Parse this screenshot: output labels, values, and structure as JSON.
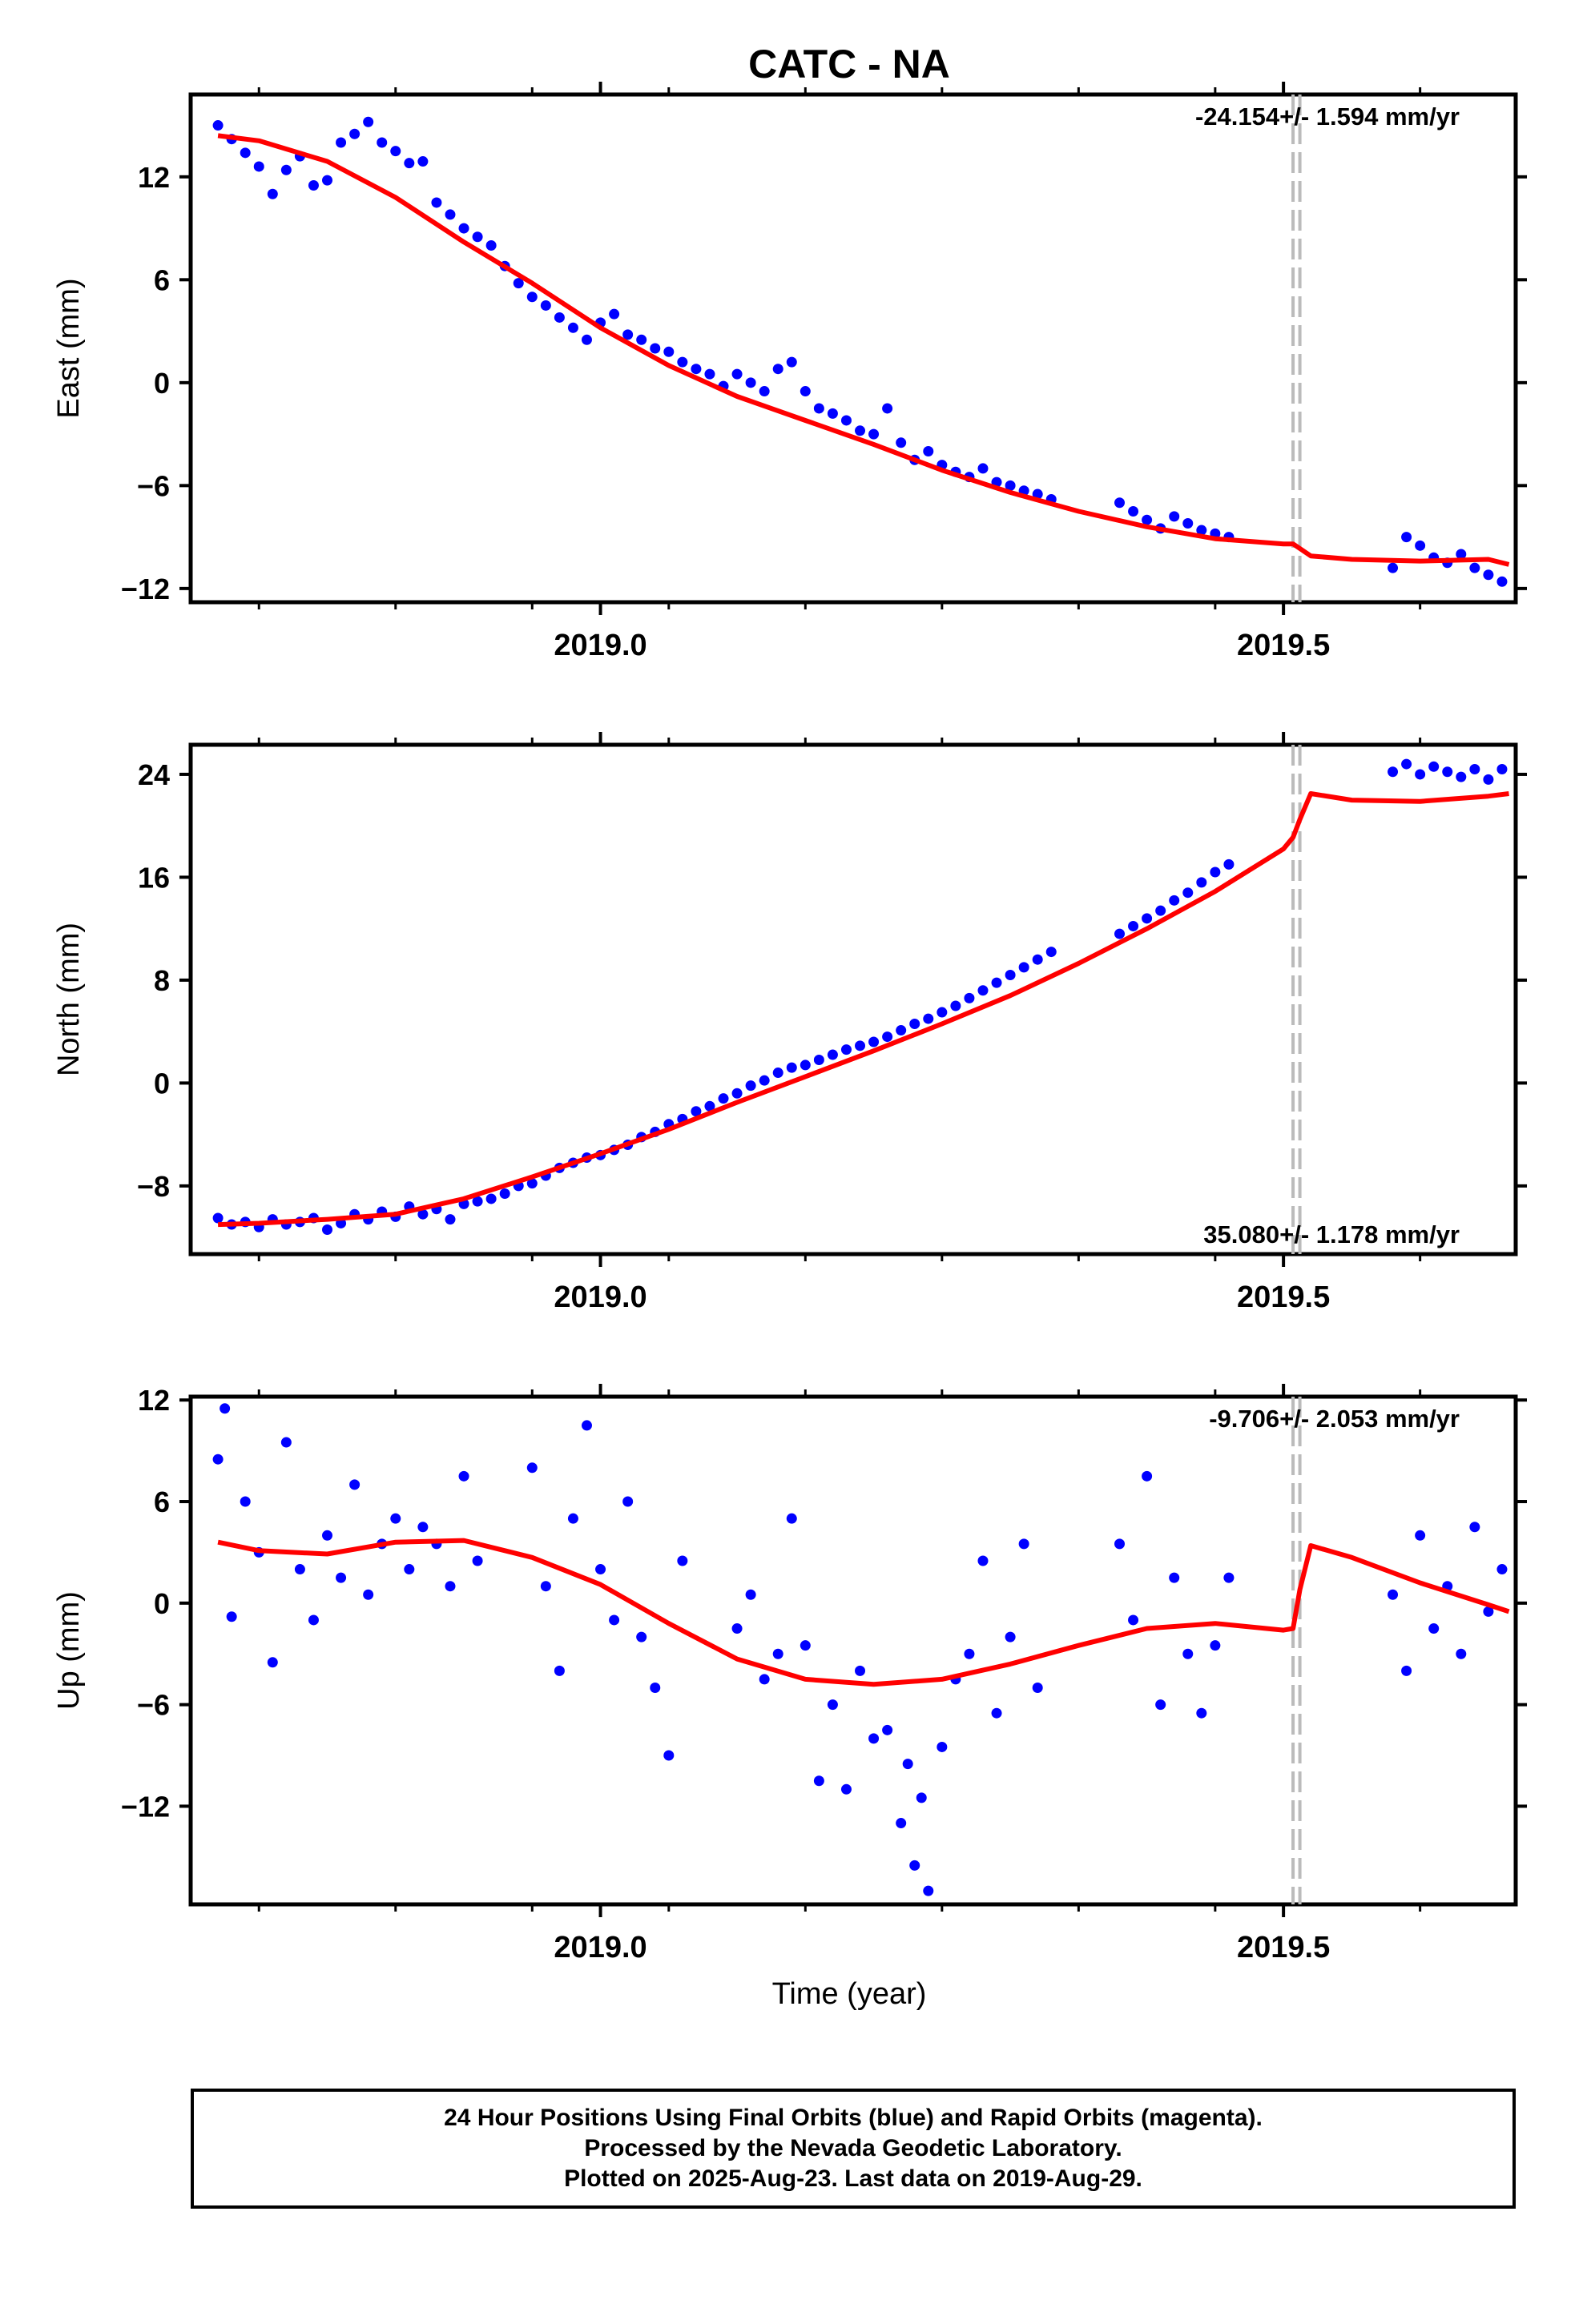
{
  "title": "CATC - NA",
  "colors": {
    "points": "#0000ff",
    "fit": "#ff0000",
    "offset_line": "#bbbbbb",
    "axes": "#000000"
  },
  "x_axis": {
    "label": "Time (year)",
    "range": [
      2018.7,
      2019.67
    ],
    "ticks": [
      2019.0,
      2019.5
    ],
    "tick_labels": [
      "2019.0",
      "2019.5"
    ],
    "minor_ticks": [
      2018.75,
      2018.85,
      2018.95,
      2019.05,
      2019.15,
      2019.25,
      2019.35,
      2019.45,
      2019.6
    ]
  },
  "equipment_changes": [
    2019.507,
    2019.512
  ],
  "chart_data": [
    {
      "type": "scatter",
      "title": "CATC - NA",
      "ylabel": "East (mm)",
      "ylim": [
        -12.8,
        16.8
      ],
      "yticks": [
        12,
        6,
        0,
        -6,
        -12
      ],
      "ytick_labels": [
        "12",
        "6",
        "0",
        "−6",
        "−12"
      ],
      "xticks": [
        "2019.0",
        "2019.5"
      ],
      "rate_label": "-24.154+/- 1.594 mm/yr",
      "rate_position": "top-right",
      "x": [
        2018.72,
        2018.73,
        2018.74,
        2018.75,
        2018.76,
        2018.77,
        2018.78,
        2018.79,
        2018.8,
        2018.81,
        2018.82,
        2018.83,
        2018.84,
        2018.85,
        2018.86,
        2018.87,
        2018.88,
        2018.89,
        2018.9,
        2018.91,
        2018.92,
        2018.93,
        2018.94,
        2018.95,
        2018.96,
        2018.97,
        2018.98,
        2018.99,
        2019.0,
        2019.01,
        2019.02,
        2019.03,
        2019.04,
        2019.05,
        2019.06,
        2019.07,
        2019.08,
        2019.09,
        2019.1,
        2019.11,
        2019.12,
        2019.13,
        2019.14,
        2019.15,
        2019.16,
        2019.17,
        2019.18,
        2019.19,
        2019.2,
        2019.21,
        2019.22,
        2019.23,
        2019.24,
        2019.25,
        2019.26,
        2019.27,
        2019.28,
        2019.29,
        2019.3,
        2019.31,
        2019.32,
        2019.33,
        2019.38,
        2019.39,
        2019.4,
        2019.41,
        2019.42,
        2019.43,
        2019.44,
        2019.45,
        2019.46,
        2019.58,
        2019.59,
        2019.6,
        2019.61,
        2019.62,
        2019.63,
        2019.64,
        2019.65,
        2019.66
      ],
      "y": [
        15.0,
        14.2,
        13.4,
        12.6,
        11.0,
        12.4,
        13.2,
        11.5,
        11.8,
        14.0,
        14.5,
        15.2,
        14.0,
        13.5,
        12.8,
        12.9,
        10.5,
        9.8,
        9.0,
        8.5,
        8.0,
        6.8,
        5.8,
        5.0,
        4.5,
        3.8,
        3.2,
        2.5,
        3.5,
        4.0,
        2.8,
        2.5,
        2.0,
        1.8,
        1.2,
        0.8,
        0.5,
        -0.2,
        0.5,
        0.0,
        -0.5,
        0.8,
        1.2,
        -0.5,
        -1.5,
        -1.8,
        -2.2,
        -2.8,
        -3.0,
        -1.5,
        -3.5,
        -4.5,
        -4.0,
        -4.8,
        -5.2,
        -5.5,
        -5.0,
        -5.8,
        -6.0,
        -6.3,
        -6.5,
        -6.8,
        -7.0,
        -7.5,
        -8.0,
        -8.5,
        -7.8,
        -8.2,
        -8.6,
        -8.8,
        -9.0,
        -10.8,
        -9.0,
        -9.5,
        -10.2,
        -10.5,
        -10.0,
        -10.8,
        -11.2,
        -11.6
      ],
      "fit_x": [
        2018.72,
        2018.75,
        2018.8,
        2018.85,
        2018.9,
        2018.95,
        2019.0,
        2019.05,
        2019.1,
        2019.15,
        2019.2,
        2019.25,
        2019.3,
        2019.35,
        2019.4,
        2019.45,
        2019.5,
        2019.507,
        2019.52,
        2019.55,
        2019.6,
        2019.65,
        2019.665
      ],
      "fit_y": [
        14.4,
        14.1,
        12.9,
        10.8,
        8.2,
        5.8,
        3.2,
        1.0,
        -0.8,
        -2.2,
        -3.6,
        -5.1,
        -6.4,
        -7.5,
        -8.4,
        -9.1,
        -9.4,
        -9.4,
        -10.1,
        -10.3,
        -10.4,
        -10.3,
        -10.6
      ]
    },
    {
      "type": "scatter",
      "ylabel": "North (mm)",
      "ylim": [
        -13.3,
        26.3
      ],
      "yticks": [
        24,
        16,
        8,
        0,
        -8
      ],
      "ytick_labels": [
        "24",
        "16",
        "8",
        "0",
        "−8"
      ],
      "xticks": [
        "2019.0",
        "2019.5"
      ],
      "rate_label": "35.080+/- 1.178 mm/yr",
      "rate_position": "bottom-right",
      "x": [
        2018.72,
        2018.73,
        2018.74,
        2018.75,
        2018.76,
        2018.77,
        2018.78,
        2018.79,
        2018.8,
        2018.81,
        2018.82,
        2018.83,
        2018.84,
        2018.85,
        2018.86,
        2018.87,
        2018.88,
        2018.89,
        2018.9,
        2018.91,
        2018.92,
        2018.93,
        2018.94,
        2018.95,
        2018.96,
        2018.97,
        2018.98,
        2018.99,
        2019.0,
        2019.01,
        2019.02,
        2019.03,
        2019.04,
        2019.05,
        2019.06,
        2019.07,
        2019.08,
        2019.09,
        2019.1,
        2019.11,
        2019.12,
        2019.13,
        2019.14,
        2019.15,
        2019.16,
        2019.17,
        2019.18,
        2019.19,
        2019.2,
        2019.21,
        2019.22,
        2019.23,
        2019.24,
        2019.25,
        2019.26,
        2019.27,
        2019.28,
        2019.29,
        2019.3,
        2019.31,
        2019.32,
        2019.33,
        2019.38,
        2019.39,
        2019.4,
        2019.41,
        2019.42,
        2019.43,
        2019.44,
        2019.45,
        2019.46,
        2019.58,
        2019.59,
        2019.6,
        2019.61,
        2019.62,
        2019.63,
        2019.64,
        2019.65,
        2019.66
      ],
      "y": [
        -10.5,
        -11.0,
        -10.8,
        -11.2,
        -10.6,
        -11.0,
        -10.8,
        -10.5,
        -11.4,
        -10.9,
        -10.2,
        -10.6,
        -10.0,
        -10.4,
        -9.6,
        -10.2,
        -9.8,
        -10.6,
        -9.4,
        -9.2,
        -9.0,
        -8.6,
        -8.0,
        -7.8,
        -7.2,
        -6.6,
        -6.2,
        -5.8,
        -5.6,
        -5.2,
        -4.8,
        -4.2,
        -3.8,
        -3.2,
        -2.8,
        -2.2,
        -1.8,
        -1.2,
        -0.8,
        -0.2,
        0.2,
        0.8,
        1.2,
        1.4,
        1.8,
        2.2,
        2.6,
        2.9,
        3.2,
        3.6,
        4.1,
        4.6,
        5.0,
        5.5,
        6.0,
        6.6,
        7.2,
        7.8,
        8.4,
        9.0,
        9.6,
        10.2,
        11.6,
        12.2,
        12.8,
        13.4,
        14.2,
        14.8,
        15.6,
        16.4,
        17.0,
        24.2,
        24.8,
        24.0,
        24.6,
        24.2,
        23.8,
        24.4,
        23.6,
        24.4
      ],
      "fit_x": [
        2018.72,
        2018.75,
        2018.8,
        2018.85,
        2018.9,
        2018.95,
        2019.0,
        2019.05,
        2019.1,
        2019.15,
        2019.2,
        2019.25,
        2019.3,
        2019.35,
        2019.4,
        2019.45,
        2019.5,
        2019.507,
        2019.512,
        2019.52,
        2019.55,
        2019.6,
        2019.65,
        2019.665
      ],
      "fit_y": [
        -11.0,
        -10.9,
        -10.6,
        -10.2,
        -9.0,
        -7.3,
        -5.5,
        -3.6,
        -1.5,
        0.5,
        2.5,
        4.6,
        6.8,
        9.3,
        12.0,
        14.9,
        18.2,
        19.1,
        20.5,
        22.5,
        22.0,
        21.9,
        22.3,
        22.5
      ]
    },
    {
      "type": "scatter",
      "ylabel": "Up (mm)",
      "ylim": [
        -17.8,
        12.2
      ],
      "yticks": [
        12,
        6,
        0,
        -6,
        -12
      ],
      "ytick_labels": [
        "12",
        "6",
        "0",
        "−6",
        "−12"
      ],
      "xticks": [
        "2019.0",
        "2019.5"
      ],
      "xlabel": "Time (year)",
      "rate_label": "-9.706+/- 2.053 mm/yr",
      "rate_position": "top-right",
      "x": [
        2018.72,
        2018.725,
        2018.73,
        2018.74,
        2018.75,
        2018.76,
        2018.77,
        2018.78,
        2018.79,
        2018.8,
        2018.81,
        2018.82,
        2018.83,
        2018.84,
        2018.85,
        2018.86,
        2018.87,
        2018.88,
        2018.89,
        2018.9,
        2018.91,
        2018.95,
        2018.96,
        2018.97,
        2018.98,
        2018.99,
        2019.0,
        2019.01,
        2019.02,
        2019.03,
        2019.04,
        2019.05,
        2019.06,
        2019.1,
        2019.11,
        2019.12,
        2019.13,
        2019.14,
        2019.15,
        2019.16,
        2019.17,
        2019.18,
        2019.19,
        2019.2,
        2019.21,
        2019.22,
        2019.225,
        2019.23,
        2019.235,
        2019.24,
        2019.25,
        2019.26,
        2019.27,
        2019.28,
        2019.29,
        2019.3,
        2019.31,
        2019.32,
        2019.38,
        2019.39,
        2019.4,
        2019.41,
        2019.42,
        2019.43,
        2019.44,
        2019.45,
        2019.46,
        2019.58,
        2019.59,
        2019.6,
        2019.61,
        2019.62,
        2019.63,
        2019.64,
        2019.65,
        2019.66
      ],
      "y": [
        8.5,
        11.5,
        -0.8,
        6.0,
        3.0,
        -3.5,
        9.5,
        2.0,
        -1.0,
        4.0,
        1.5,
        7.0,
        0.5,
        3.5,
        5.0,
        2.0,
        4.5,
        3.5,
        1.0,
        7.5,
        2.5,
        8.0,
        1.0,
        -4.0,
        5.0,
        10.5,
        2.0,
        -1.0,
        6.0,
        -2.0,
        -5.0,
        -9.0,
        2.5,
        -1.5,
        0.5,
        -4.5,
        -3.0,
        5.0,
        -2.5,
        -10.5,
        -6.0,
        -11.0,
        -4.0,
        -8.0,
        -7.5,
        -13.0,
        -9.5,
        -15.5,
        -11.5,
        -17.0,
        -8.5,
        -4.5,
        -3.0,
        2.5,
        -6.5,
        -2.0,
        3.5,
        -5.0,
        3.5,
        -1.0,
        7.5,
        -6.0,
        1.5,
        -3.0,
        -6.5,
        -2.5,
        1.5,
        0.5,
        -4.0,
        4.0,
        -1.5,
        1.0,
        -3.0,
        4.5,
        -0.5,
        2.0
      ],
      "fit_x": [
        2018.72,
        2018.75,
        2018.8,
        2018.85,
        2018.9,
        2018.95,
        2019.0,
        2019.05,
        2019.1,
        2019.15,
        2019.2,
        2019.25,
        2019.3,
        2019.35,
        2019.4,
        2019.45,
        2019.5,
        2019.507,
        2019.512,
        2019.52,
        2019.55,
        2019.6,
        2019.65,
        2019.665
      ],
      "fit_y": [
        3.6,
        3.1,
        2.9,
        3.6,
        3.7,
        2.7,
        1.1,
        -1.2,
        -3.3,
        -4.5,
        -4.8,
        -4.5,
        -3.6,
        -2.5,
        -1.5,
        -1.2,
        -1.6,
        -1.5,
        0.8,
        3.4,
        2.7,
        1.2,
        -0.1,
        -0.5
      ]
    }
  ],
  "footer": {
    "line1": "24 Hour Positions Using Final Orbits (blue) and Rapid Orbits (magenta).",
    "line2": "Processed by the Nevada Geodetic Laboratory.",
    "line3": "Plotted on 2025-Aug-23. Last data on 2019-Aug-29."
  }
}
